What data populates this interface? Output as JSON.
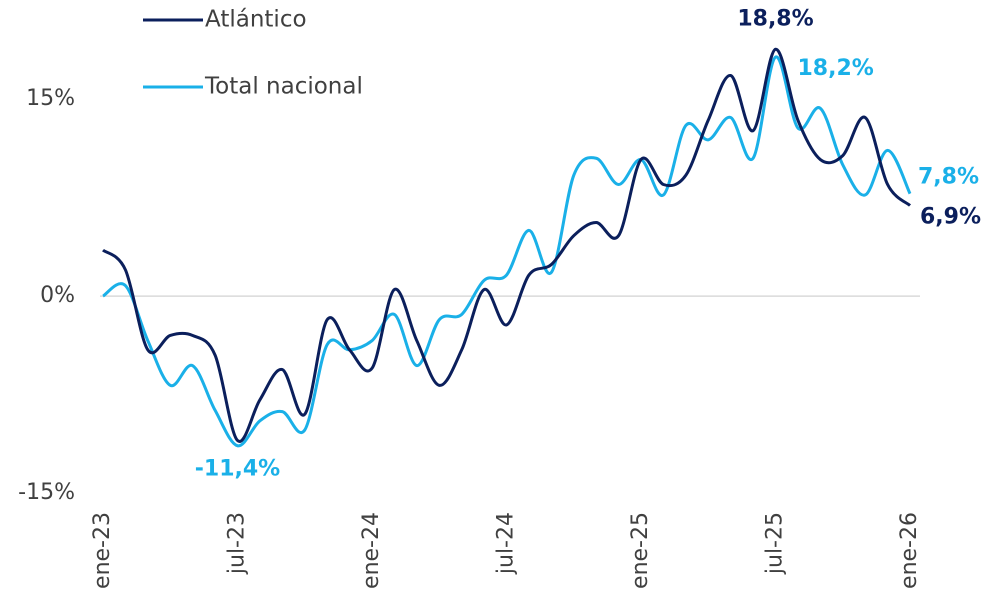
{
  "chart_data": {
    "type": "line",
    "categories": [
      "ene-23",
      null,
      null,
      null,
      null,
      null,
      "jul-23",
      null,
      null,
      null,
      null,
      null,
      "ene-24",
      null,
      null,
      null,
      null,
      null,
      "jul-24",
      null,
      null,
      null,
      null,
      null,
      "ene-25",
      null,
      null,
      null,
      null,
      null,
      "jul-25",
      null,
      null,
      null,
      null,
      null,
      "ene-26"
    ],
    "series": [
      {
        "name": "Atlántico",
        "color": "#0b1f5c",
        "values": [
          3.5,
          2.0,
          -4.1,
          -3.0,
          -3.0,
          -4.5,
          -11.0,
          -7.9,
          -5.6,
          -9.0,
          -1.8,
          -4.1,
          -5.5,
          0.5,
          -3.4,
          -6.8,
          -4.1,
          0.5,
          -2.2,
          1.6,
          2.4,
          4.6,
          5.6,
          4.6,
          10.4,
          8.5,
          9.2,
          13.4,
          16.8,
          12.6,
          18.8,
          13.4,
          10.4,
          10.7,
          13.6,
          8.5,
          6.9
        ],
        "value_labels": [
          null,
          null,
          null,
          null,
          null,
          null,
          null,
          null,
          null,
          null,
          null,
          null,
          null,
          null,
          null,
          null,
          null,
          null,
          null,
          null,
          null,
          null,
          null,
          null,
          null,
          null,
          null,
          null,
          null,
          null,
          "18,8%",
          null,
          null,
          null,
          null,
          null,
          "6,9%"
        ]
      },
      {
        "name": "Total nacional",
        "color": "#1ab0e8",
        "values": [
          0.0,
          0.8,
          -3.4,
          -6.8,
          -5.3,
          -8.7,
          -11.4,
          -9.5,
          -8.8,
          -10.2,
          -3.7,
          -4.1,
          -3.4,
          -1.4,
          -5.3,
          -1.8,
          -1.4,
          1.2,
          1.6,
          5.0,
          1.8,
          9.2,
          10.5,
          8.5,
          10.4,
          7.7,
          13.0,
          11.9,
          13.6,
          10.5,
          18.2,
          12.8,
          14.3,
          10.0,
          7.7,
          11.1,
          7.8
        ],
        "value_labels": [
          null,
          null,
          null,
          null,
          null,
          null,
          "-11,4%",
          null,
          null,
          null,
          null,
          null,
          null,
          null,
          null,
          null,
          null,
          null,
          null,
          null,
          null,
          null,
          null,
          null,
          null,
          null,
          null,
          null,
          null,
          null,
          "18,2%",
          null,
          null,
          null,
          null,
          null,
          "7,8%"
        ]
      }
    ],
    "ylim": [
      -15,
      20
    ],
    "yticks": [
      {
        "value": -15,
        "label": "-15%"
      },
      {
        "value": 0,
        "label": "0%"
      },
      {
        "value": 15,
        "label": "15%"
      }
    ],
    "legend": "top-left"
  }
}
